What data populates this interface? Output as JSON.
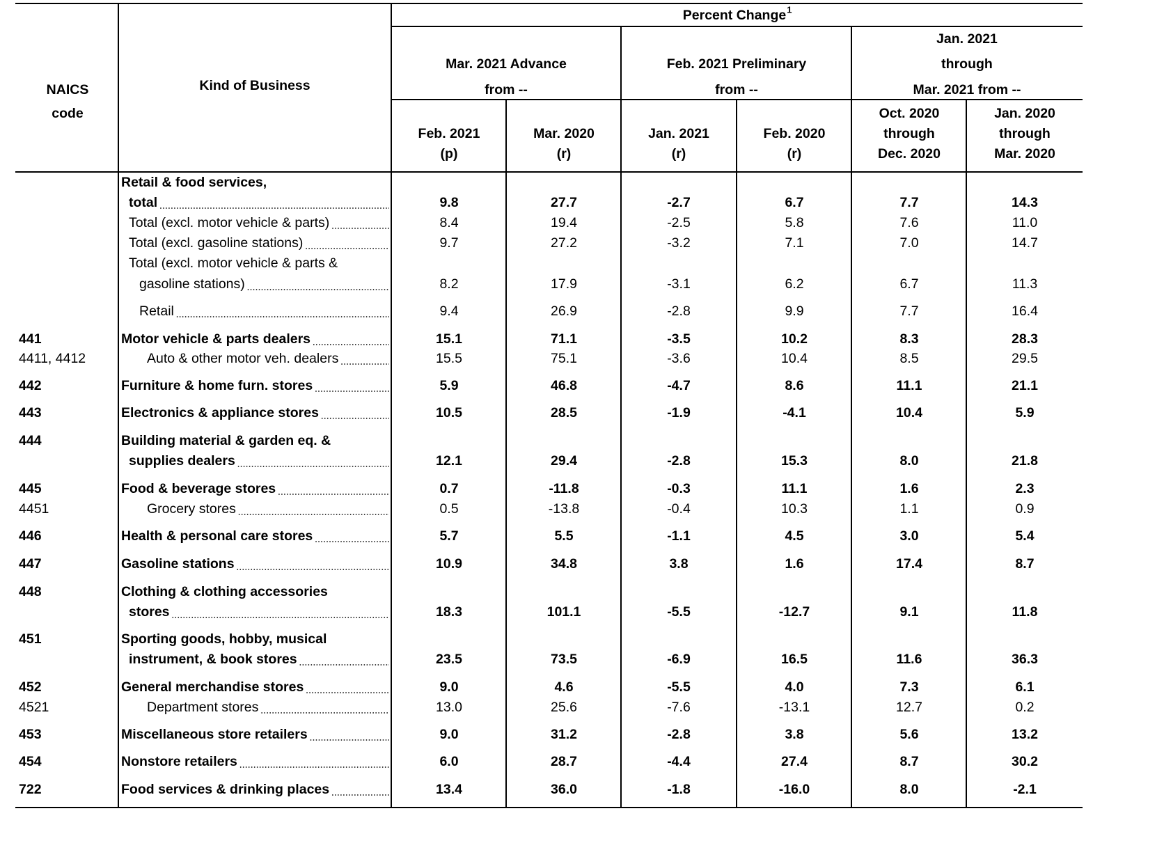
{
  "header": {
    "code": [
      "NAICS",
      "code"
    ],
    "business": "Kind of Business",
    "percent_change": "Percent Change",
    "footnote": "1",
    "groups": [
      [
        "Mar. 2021 Advance",
        "from --"
      ],
      [
        "Feb. 2021 Preliminary",
        "from --"
      ],
      [
        "Jan. 2021",
        "through",
        "Mar. 2021 from --"
      ]
    ],
    "columns": [
      [
        "Feb. 2021",
        "(p)"
      ],
      [
        "Mar. 2020",
        "(r)"
      ],
      [
        "Jan. 2021",
        "(r)"
      ],
      [
        "Feb. 2020",
        "(r)"
      ],
      [
        "Oct. 2020",
        "through",
        "Dec. 2020"
      ],
      [
        "Jan. 2020",
        "through",
        "Mar. 2020"
      ]
    ]
  },
  "rows": [
    {
      "business": [
        "Retail & food services,",
        "total"
      ],
      "values": [
        "9.8",
        "27.7",
        "-2.7",
        "6.7",
        "7.7",
        "14.3"
      ]
    },
    {
      "business": [
        "Total (excl. motor vehicle & parts)"
      ],
      "values": [
        "8.4",
        "19.4",
        "-2.5",
        "5.8",
        "7.6",
        "11.0"
      ]
    },
    {
      "business": [
        "Total (excl. gasoline stations)"
      ],
      "values": [
        "9.7",
        "27.2",
        "-3.2",
        "7.1",
        "7.0",
        "14.7"
      ]
    },
    {
      "business": [
        "Total (excl. motor vehicle & parts &",
        "gasoline stations)"
      ],
      "values": [
        "8.2",
        "17.9",
        "-3.1",
        "6.2",
        "6.7",
        "11.3"
      ]
    },
    {
      "business": [
        "Retail"
      ],
      "values": [
        "9.4",
        "26.9",
        "-2.8",
        "9.9",
        "7.7",
        "16.4"
      ]
    },
    {
      "code": "441",
      "business": [
        "Motor vehicle & parts dealers"
      ],
      "values": [
        "15.1",
        "71.1",
        "-3.5",
        "10.2",
        "8.3",
        "28.3"
      ]
    },
    {
      "code": "4411, 4412",
      "business": [
        "Auto & other motor veh. dealers"
      ],
      "values": [
        "15.5",
        "75.1",
        "-3.6",
        "10.4",
        "8.5",
        "29.5"
      ]
    },
    {
      "code": "442",
      "business": [
        "Furniture & home furn. stores"
      ],
      "values": [
        "5.9",
        "46.8",
        "-4.7",
        "8.6",
        "11.1",
        "21.1"
      ]
    },
    {
      "code": "443",
      "business": [
        "Electronics & appliance stores"
      ],
      "values": [
        "10.5",
        "28.5",
        "-1.9",
        "-4.1",
        "10.4",
        "5.9"
      ]
    },
    {
      "code": "444",
      "business": [
        "Building material & garden eq. &",
        "supplies dealers"
      ],
      "values": [
        "12.1",
        "29.4",
        "-2.8",
        "15.3",
        "8.0",
        "21.8"
      ]
    },
    {
      "code": "445",
      "business": [
        "Food & beverage stores"
      ],
      "values": [
        "0.7",
        "-11.8",
        "-0.3",
        "11.1",
        "1.6",
        "2.3"
      ]
    },
    {
      "code": "4451",
      "business": [
        "Grocery stores"
      ],
      "values": [
        "0.5",
        "-13.8",
        "-0.4",
        "10.3",
        "1.1",
        "0.9"
      ]
    },
    {
      "code": "446",
      "business": [
        "Health & personal care stores"
      ],
      "values": [
        "5.7",
        "5.5",
        "-1.1",
        "4.5",
        "3.0",
        "5.4"
      ]
    },
    {
      "code": "447",
      "business": [
        "Gasoline stations"
      ],
      "values": [
        "10.9",
        "34.8",
        "3.8",
        "1.6",
        "17.4",
        "8.7"
      ]
    },
    {
      "code": "448",
      "business": [
        "Clothing & clothing accessories",
        "stores"
      ],
      "values": [
        "18.3",
        "101.1",
        "-5.5",
        "-12.7",
        "9.1",
        "11.8"
      ]
    },
    {
      "code": "451",
      "business": [
        "Sporting goods, hobby, musical",
        "instrument, & book stores"
      ],
      "values": [
        "23.5",
        "73.5",
        "-6.9",
        "16.5",
        "11.6",
        "36.3"
      ]
    },
    {
      "code": "452",
      "business": [
        "General merchandise stores"
      ],
      "values": [
        "9.0",
        "4.6",
        "-5.5",
        "4.0",
        "7.3",
        "6.1"
      ]
    },
    {
      "code": "4521",
      "business": [
        "Department stores"
      ],
      "values": [
        "13.0",
        "25.6",
        "-7.6",
        "-13.1",
        "12.7",
        "0.2"
      ]
    },
    {
      "code": "453",
      "business": [
        "Miscellaneous store retailers"
      ],
      "values": [
        "9.0",
        "31.2",
        "-2.8",
        "3.8",
        "5.6",
        "13.2"
      ]
    },
    {
      "code": "454",
      "business": [
        "Nonstore retailers"
      ],
      "values": [
        "6.0",
        "28.7",
        "-4.4",
        "27.4",
        "8.7",
        "30.2"
      ]
    },
    {
      "code": "722",
      "business": [
        "Food services & drinking places"
      ],
      "values": [
        "13.4",
        "36.0",
        "-1.8",
        "-16.0",
        "8.0",
        "-2.1"
      ]
    }
  ]
}
